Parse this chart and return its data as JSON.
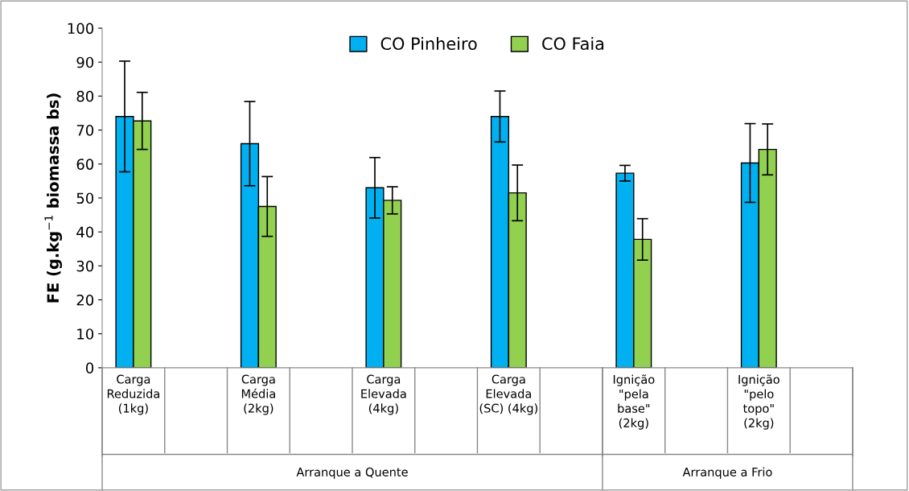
{
  "chart_data": {
    "type": "bar",
    "ylabel": "FE (g.kg$^{−1}$ biomassa bs)",
    "categories": [
      "Carga\nReduzida\n(1kg)",
      null,
      "Carga\nMédia\n(2kg)",
      null,
      "Carga\nElevada\n(4kg)",
      null,
      "Carga\nElevada\n(SC) (4kg)",
      null,
      "Ignição\n\"pela\nbase\"\n(2kg)",
      null,
      "Ignição\n\"pelo\ntopo\"\n(2kg)",
      null
    ],
    "series": [
      {
        "name": "CO Pinheiro",
        "color": "#00b0f0",
        "values": [
          74,
          null,
          66,
          null,
          53,
          null,
          74,
          null,
          57.3,
          null,
          60.3,
          null
        ],
        "errors": [
          16.3,
          null,
          12.4,
          null,
          8.9,
          null,
          7.5,
          null,
          2.3,
          null,
          11.6,
          null
        ]
      },
      {
        "name": "CO Faia",
        "color": "#92d050",
        "values": [
          72.7,
          null,
          47.5,
          null,
          49.3,
          null,
          51.5,
          null,
          37.8,
          null,
          64.3,
          null
        ],
        "errors": [
          8.4,
          null,
          8.8,
          null,
          4,
          null,
          8.2,
          null,
          6.1,
          null,
          7.5,
          null
        ]
      }
    ],
    "annotations": [
      "Arranque a Quente",
      "Arranque a Frio"
    ],
    "ylim": [
      0,
      100
    ],
    "yticks": [
      0,
      10,
      20,
      30,
      40,
      50,
      60,
      70,
      80,
      90,
      100
    ],
    "grid": false,
    "legend": "top"
  }
}
